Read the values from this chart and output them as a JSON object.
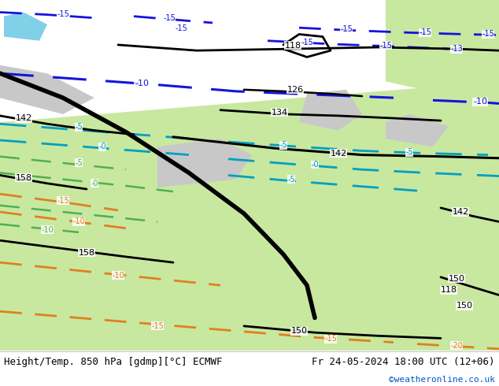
{
  "title_left": "Height/Temp. 850 hPa [gdmp][°C] ECMWF",
  "title_right": "Fr 24-05-2024 18:00 UTC (12+06)",
  "watermark": "©weatheronline.co.uk",
  "bottom_bar_color": "#ffffff",
  "text_color": "#000000",
  "watermark_color": "#0055cc",
  "font_size_title": 9,
  "font_size_watermark": 8,
  "fig_width": 6.34,
  "fig_height": 4.9,
  "dpi": 100,
  "colors": {
    "sea_gray": "#c8c8c8",
    "land_light_green": "#c8e8a0",
    "land_mid_green": "#b0d880",
    "land_dark_green": "#98c870",
    "blue_temp": "#1414dd",
    "cyan_temp": "#00a0c0",
    "green_temp": "#50b050",
    "orange_temp": "#e08020",
    "black_contour": "#000000",
    "thick_black": "#000000"
  }
}
